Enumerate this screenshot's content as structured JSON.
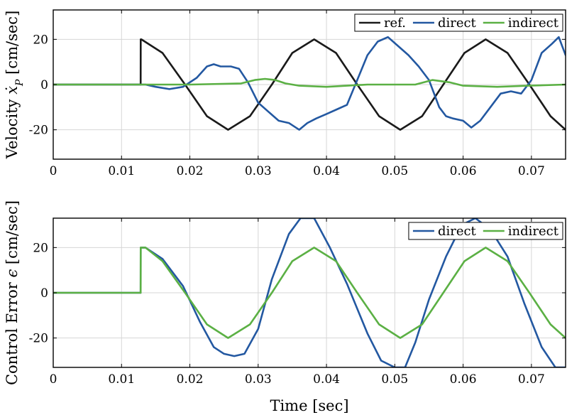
{
  "colors": {
    "ref": "#1a1a1a",
    "direct": "#2358a1",
    "indirect": "#5bb044"
  },
  "chart_data": [
    {
      "type": "line",
      "ylabel_prefix": "Velocity ",
      "ylabel_math": "ẋ",
      "ylabel_sub": "P",
      "ylabel_unit": " [cm/sec]",
      "xlabel": "",
      "xlim": [
        0,
        0.075
      ],
      "ylim": [
        -33,
        33
      ],
      "xticks": [
        0,
        0.01,
        0.02,
        0.03,
        0.04,
        0.05,
        0.06,
        0.07
      ],
      "xtick_labels": [
        "0",
        "0.01",
        "0.02",
        "0.03",
        "0.04",
        "0.05",
        "0.06",
        "0.07"
      ],
      "yticks": [
        -20,
        0,
        20
      ],
      "ytick_labels": [
        "-20",
        "0",
        "20"
      ],
      "grid": true,
      "legend_position": "top-right",
      "series": [
        {
          "name": "ref.",
          "color_key": "ref",
          "x": [
            0,
            0.0128,
            0.01281,
            0.0129,
            0.016,
            0.0193,
            0.0225,
            0.0256,
            0.0288,
            0.032,
            0.035,
            0.0382,
            0.0414,
            0.0445,
            0.0477,
            0.0508,
            0.054,
            0.0571,
            0.0602,
            0.0633,
            0.0665,
            0.0697,
            0.0728,
            0.075
          ],
          "y": [
            0,
            0,
            20,
            20,
            14,
            0,
            -14,
            -20,
            -14,
            0,
            14,
            20,
            14,
            0,
            -14,
            -20,
            -14,
            0,
            14,
            20,
            14,
            0,
            -14,
            -20
          ]
        },
        {
          "name": "direct",
          "color_key": "direct",
          "x": [
            0,
            0.012,
            0.0135,
            0.015,
            0.017,
            0.019,
            0.021,
            0.0225,
            0.0235,
            0.0245,
            0.026,
            0.0272,
            0.0285,
            0.03,
            0.0315,
            0.033,
            0.0345,
            0.036,
            0.0372,
            0.0385,
            0.04,
            0.0415,
            0.043,
            0.0445,
            0.046,
            0.0475,
            0.049,
            0.0505,
            0.052,
            0.0535,
            0.055,
            0.0565,
            0.0575,
            0.0585,
            0.06,
            0.0612,
            0.0625,
            0.064,
            0.0655,
            0.067,
            0.0685,
            0.07,
            0.0715,
            0.073,
            0.074,
            0.075
          ],
          "y": [
            0,
            0,
            0,
            -1,
            -2,
            -1,
            3,
            8,
            9,
            8,
            8,
            7,
            1,
            -8,
            -12,
            -16,
            -17,
            -20,
            -17,
            -15,
            -13,
            -11,
            -9,
            2,
            13,
            19,
            21,
            17,
            13,
            8,
            2,
            -10,
            -14,
            -15,
            -16,
            -19,
            -16,
            -10,
            -4,
            -3,
            -4,
            2,
            14,
            18,
            21,
            13
          ]
        },
        {
          "name": "indirect",
          "color_key": "indirect",
          "x": [
            0,
            0.01,
            0.02,
            0.0275,
            0.0295,
            0.031,
            0.0325,
            0.034,
            0.036,
            0.04,
            0.043,
            0.046,
            0.05,
            0.053,
            0.0555,
            0.058,
            0.06,
            0.065,
            0.0695,
            0.075
          ],
          "y": [
            0,
            0,
            0,
            0.5,
            2,
            2.5,
            2,
            0.5,
            -0.5,
            -1,
            -0.5,
            0,
            0,
            0,
            2,
            1,
            -0.5,
            -1,
            -0.5,
            0
          ]
        }
      ]
    },
    {
      "type": "line",
      "ylabel_prefix": "Control Error ",
      "ylabel_math": "ϵ",
      "ylabel_sub": "",
      "ylabel_unit": " [cm/sec]",
      "xlabel": "Time [sec]",
      "xlim": [
        0,
        0.075
      ],
      "ylim": [
        -33,
        33
      ],
      "xticks": [
        0,
        0.01,
        0.02,
        0.03,
        0.04,
        0.05,
        0.06,
        0.07
      ],
      "xtick_labels": [
        "0",
        "0.01",
        "0.02",
        "0.03",
        "0.04",
        "0.05",
        "0.06",
        "0.07"
      ],
      "yticks": [
        -20,
        0,
        20
      ],
      "ytick_labels": [
        "-20",
        "0",
        "20"
      ],
      "grid": true,
      "legend_position": "top-right",
      "series": [
        {
          "name": "direct",
          "color_key": "direct",
          "x": [
            0,
            0.0128,
            0.01281,
            0.0135,
            0.016,
            0.019,
            0.0215,
            0.0235,
            0.025,
            0.0265,
            0.028,
            0.03,
            0.032,
            0.0345,
            0.0362,
            0.0382,
            0.0405,
            0.043,
            0.046,
            0.048,
            0.05,
            0.0515,
            0.053,
            0.055,
            0.0575,
            0.0598,
            0.0618,
            0.064,
            0.0665,
            0.069,
            0.0715,
            0.0735,
            0.075
          ],
          "y": [
            0,
            0,
            20,
            20,
            15,
            3,
            -13,
            -24,
            -27,
            -28,
            -27,
            -16,
            6,
            26,
            33,
            33,
            20,
            4,
            -18,
            -30,
            -33,
            -33,
            -22,
            -3,
            16,
            30,
            33,
            28,
            16,
            -5,
            -24,
            -33,
            -33
          ]
        },
        {
          "name": "indirect",
          "color_key": "indirect",
          "x": [
            0,
            0.0128,
            0.01281,
            0.0135,
            0.016,
            0.0193,
            0.0225,
            0.0256,
            0.0288,
            0.032,
            0.035,
            0.0382,
            0.0414,
            0.0445,
            0.0477,
            0.0508,
            0.054,
            0.0571,
            0.0602,
            0.0633,
            0.0665,
            0.0697,
            0.0728,
            0.075
          ],
          "y": [
            0,
            0,
            20,
            20,
            14,
            0,
            -14,
            -20,
            -14,
            0,
            14,
            20,
            14,
            0,
            -14,
            -20,
            -14,
            0,
            14,
            20,
            14,
            0,
            -14,
            -20
          ]
        }
      ]
    }
  ]
}
